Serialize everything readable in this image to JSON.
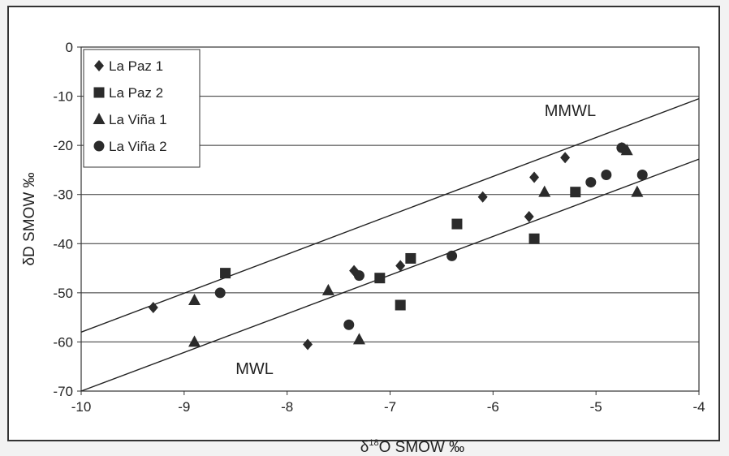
{
  "chart_data": {
    "type": "scatter",
    "xlabel": "δ18O SMOW ‰",
    "xlabel_main": "δ",
    "xlabel_sup": "18",
    "xlabel_rest": "O SMOW ‰",
    "ylabel": "δD SMOW ‰",
    "xlim": [
      -10,
      -4
    ],
    "ylim": [
      -70,
      0
    ],
    "x_ticks": [
      -10,
      -9,
      -8,
      -7,
      -6,
      -5,
      -4
    ],
    "y_ticks": [
      0,
      -10,
      -20,
      -30,
      -40,
      -50,
      -60,
      -70
    ],
    "grid": "horizontal",
    "legend_position": "top-left",
    "series": [
      {
        "name": "La Paz 1",
        "marker": "diamond",
        "points": [
          [
            -9.3,
            -53
          ],
          [
            -7.8,
            -60.5
          ],
          [
            -7.35,
            -45.5
          ],
          [
            -6.9,
            -44.5
          ],
          [
            -6.1,
            -30.5
          ],
          [
            -5.65,
            -34.5
          ],
          [
            -5.6,
            -26.5
          ],
          [
            -5.3,
            -22.5
          ],
          [
            -4.75,
            -20.5
          ]
        ]
      },
      {
        "name": "La Paz 2",
        "marker": "square",
        "points": [
          [
            -8.6,
            -46
          ],
          [
            -7.1,
            -47
          ],
          [
            -6.9,
            -52.5
          ],
          [
            -6.8,
            -43
          ],
          [
            -6.35,
            -36
          ],
          [
            -5.6,
            -39
          ],
          [
            -5.2,
            -29.5
          ]
        ]
      },
      {
        "name": "La Viña 1",
        "marker": "triangle",
        "points": [
          [
            -8.9,
            -51.5
          ],
          [
            -8.9,
            -60
          ],
          [
            -7.6,
            -49.5
          ],
          [
            -7.3,
            -59.5
          ],
          [
            -5.5,
            -29.5
          ],
          [
            -4.7,
            -21
          ],
          [
            -4.6,
            -29.5
          ]
        ]
      },
      {
        "name": "La Viña 2",
        "marker": "circle",
        "points": [
          [
            -8.65,
            -50
          ],
          [
            -7.4,
            -56.5
          ],
          [
            -7.3,
            -46.5
          ],
          [
            -6.4,
            -42.5
          ],
          [
            -5.05,
            -27.5
          ],
          [
            -4.9,
            -26
          ],
          [
            -4.75,
            -20.5
          ],
          [
            -4.55,
            -26
          ]
        ]
      }
    ],
    "lines": [
      {
        "label": "MMWL",
        "from": [
          -10,
          -58
        ],
        "to": [
          -4,
          -10.5
        ],
        "label_at": [
          -5.5,
          -14
        ]
      },
      {
        "label": "MWL",
        "from": [
          -10,
          -70
        ],
        "to": [
          -4,
          -22.8
        ],
        "label_at": [
          -8.5,
          -66.5
        ]
      }
    ]
  }
}
